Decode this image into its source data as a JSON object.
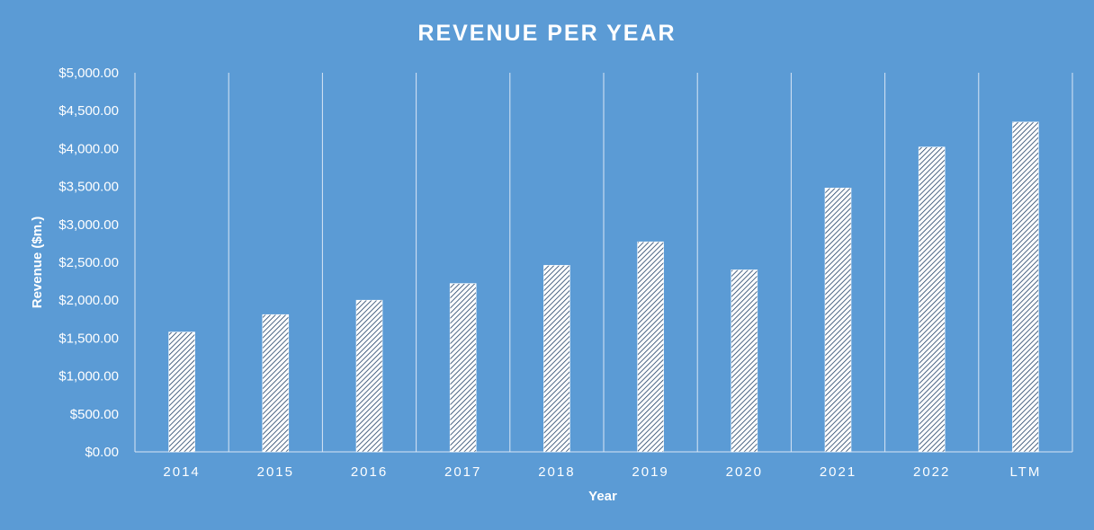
{
  "colors": {
    "background": "#5b9bd5",
    "gridline": "#d9e6f5",
    "bar_fill": "#ffffff",
    "bar_hatch": "#1f3f66",
    "text": "#ffffff"
  },
  "chart_data": {
    "type": "bar",
    "title": "REVENUE PER YEAR",
    "xlabel": "Year",
    "ylabel": "Revenue ($m.)",
    "categories": [
      "2014",
      "2015",
      "2016",
      "2017",
      "2018",
      "2019",
      "2020",
      "2021",
      "2022",
      "LTM"
    ],
    "values": [
      1580,
      1810,
      2000,
      2220,
      2460,
      2770,
      2400,
      3480,
      4020,
      4350
    ],
    "ylim": [
      0,
      5000
    ],
    "yticks": [
      0,
      500,
      1000,
      1500,
      2000,
      2500,
      3000,
      3500,
      4000,
      4500,
      5000
    ],
    "ytick_labels": [
      "$0.00",
      "$500.00",
      "$1,000.00",
      "$1,500.00",
      "$2,000.00",
      "$2,500.00",
      "$3,000.00",
      "$3,500.00",
      "$4,000.00",
      "$4,500.00",
      "$5,000.00"
    ],
    "grid": "vertical category separators",
    "legend": "none",
    "bar_pattern": "diagonal hatch"
  }
}
